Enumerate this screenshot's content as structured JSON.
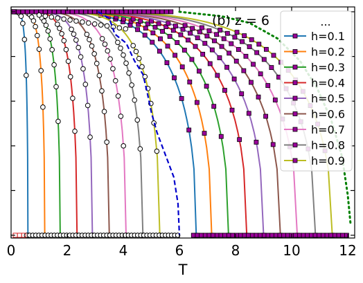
{
  "chart_data": {
    "type": "line",
    "title": "(b) z = 6",
    "xlabel": "T",
    "ylabel": "",
    "xlim": [
      0,
      12.3
    ],
    "ylim": [
      0,
      1.02
    ],
    "xticks": [
      "0",
      "2",
      "4",
      "6",
      "8",
      "10",
      "12"
    ],
    "legend_header": "...",
    "legend_position": "top-right",
    "grid": false,
    "series": [
      {
        "name": "h=0.1",
        "color": "#1f77b4",
        "tc_left": 0.6,
        "tc_right": 6.6,
        "mid_left": 0.35,
        "mid_right": 5.6
      },
      {
        "name": "h=0.2",
        "color": "#ff7f0e",
        "tc_left": 1.2,
        "tc_right": 7.15,
        "mid_left": 0.9,
        "mid_right": 6.15
      },
      {
        "name": "h=0.3",
        "color": "#2ca02c",
        "tc_left": 1.75,
        "tc_right": 7.75,
        "mid_left": 1.45,
        "mid_right": 6.75
      },
      {
        "name": "h=0.4",
        "color": "#d62728",
        "tc_left": 2.35,
        "tc_right": 8.4,
        "mid_left": 2.05,
        "mid_right": 7.35
      },
      {
        "name": "h=0.5",
        "color": "#9467bd",
        "tc_left": 2.9,
        "tc_right": 9.0,
        "mid_left": 2.6,
        "mid_right": 7.95
      },
      {
        "name": "h=0.6",
        "color": "#8c564b",
        "tc_left": 3.5,
        "tc_right": 9.6,
        "mid_left": 3.15,
        "mid_right": 8.55
      },
      {
        "name": "h=0.7",
        "color": "#e377c2",
        "tc_left": 4.1,
        "tc_right": 10.2,
        "mid_left": 3.7,
        "mid_right": 9.15
      },
      {
        "name": "h=0.8",
        "color": "#7f7f7f",
        "tc_left": 4.7,
        "tc_right": 10.85,
        "mid_left": 4.25,
        "mid_right": 9.75
      },
      {
        "name": "h=0.9",
        "color": "#bcbd22",
        "tc_left": 5.3,
        "tc_right": 11.45,
        "mid_left": 4.8,
        "mid_right": 10.35
      }
    ],
    "dashed_boundary": {
      "color": "#0000cc",
      "points": [
        [
          3.1,
          1.0
        ],
        [
          3.5,
          0.97
        ],
        [
          3.7,
          0.9
        ],
        [
          4.1,
          0.86
        ],
        [
          4.4,
          0.78
        ],
        [
          4.7,
          0.72
        ],
        [
          4.85,
          0.64
        ],
        [
          5.0,
          0.55
        ],
        [
          5.2,
          0.46
        ],
        [
          5.5,
          0.36
        ],
        [
          5.8,
          0.26
        ],
        [
          5.95,
          0.14
        ],
        [
          6.0,
          0.0
        ]
      ]
    },
    "dotted_envelope": {
      "color": "#008000",
      "points": [
        [
          6.0,
          1.0
        ],
        [
          7.5,
          0.98
        ],
        [
          8.5,
          0.95
        ],
        [
          9.5,
          0.88
        ],
        [
          10.3,
          0.78
        ],
        [
          10.9,
          0.66
        ],
        [
          11.4,
          0.52
        ],
        [
          11.8,
          0.35
        ],
        [
          12.0,
          0.18
        ],
        [
          12.1,
          0.05
        ]
      ]
    }
  }
}
